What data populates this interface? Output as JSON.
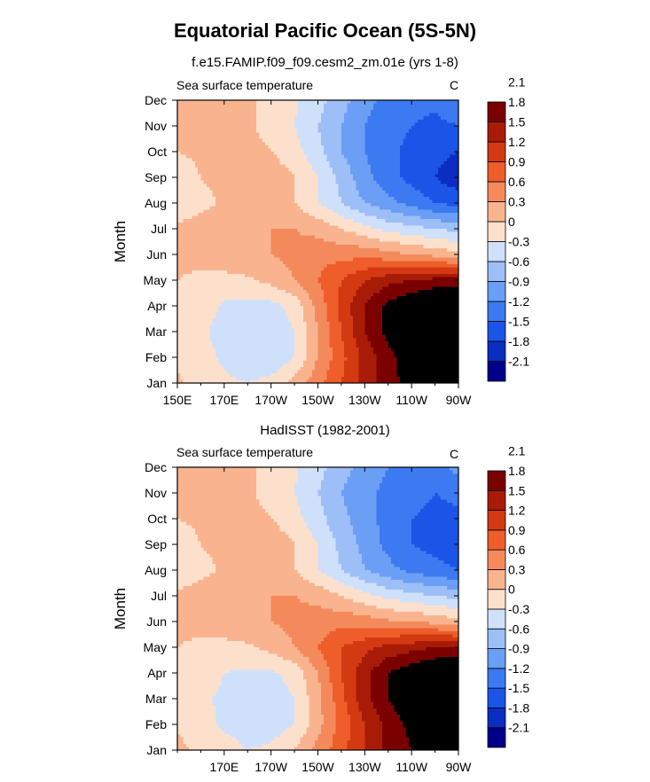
{
  "main_title": "Equatorial Pacific Ocean (5S-5N)",
  "panels": [
    {
      "title": "f.e15.FAMIP.f09_f09.cesm2_zm.01e (yrs 1-8)",
      "label": "Sea surface temperature",
      "units": "C"
    },
    {
      "title": "HadISST (1982-2001)",
      "label": "Sea surface temperature",
      "units": "C"
    }
  ],
  "colors": {
    "levels": [
      "#00008b",
      "#0b2dc2",
      "#1b55e8",
      "#3c7af2",
      "#6b9ef5",
      "#9dbff7",
      "#cfe0fb",
      "#fde0cc",
      "#f9b48f",
      "#f48a5b",
      "#ef5d2a",
      "#d33a12",
      "#a81c07",
      "#7b0000"
    ]
  },
  "chart_data": [
    {
      "type": "heatmap",
      "title": "f.e15.FAMIP.f09_f09.cesm2_zm.01e (yrs 1-8)",
      "subtitle": "Sea surface temperature",
      "units": "C",
      "xlabel": "",
      "ylabel": "Month",
      "x_range": [
        150,
        270
      ],
      "x_ticks": [
        150,
        170,
        190,
        210,
        230,
        250,
        270
      ],
      "x_tick_labels": [
        "150E",
        "170E",
        "170W",
        "150W",
        "130W",
        "110W",
        "90W"
      ],
      "y_ticks": [
        1,
        2,
        3,
        4,
        5,
        6,
        7,
        8,
        9,
        10,
        11,
        12
      ],
      "y_tick_labels": [
        "Jan",
        "Feb",
        "Mar",
        "Apr",
        "May",
        "Jun",
        "Jul",
        "Aug",
        "Sep",
        "Oct",
        "Nov",
        "Dec"
      ],
      "colorbar_levels": [
        -2.1,
        -1.8,
        -1.5,
        -1.2,
        -0.9,
        -0.6,
        -0.3,
        0,
        0.3,
        0.6,
        0.9,
        1.2,
        1.5,
        1.8,
        2.1
      ],
      "colorbar_labels": [
        "-2.1",
        "-1.8",
        "-1.5",
        "-1.2",
        "-0.9",
        "-0.6",
        "-0.3",
        "0",
        "0.3",
        "0.6",
        "0.9",
        "1.2",
        "1.5",
        "1.8",
        "2.1"
      ],
      "legend_position": "right",
      "x": [
        150,
        160,
        170,
        180,
        190,
        200,
        210,
        220,
        230,
        240,
        250,
        260,
        270
      ],
      "y": [
        1,
        2,
        3,
        4,
        5,
        6,
        7,
        8,
        9,
        10,
        11,
        12
      ],
      "z": [
        [
          0.05,
          -0.15,
          -0.25,
          -0.3,
          -0.2,
          0.1,
          0.5,
          0.9,
          1.3,
          1.7,
          1.9,
          2.0,
          2.0
        ],
        [
          -0.05,
          -0.2,
          -0.35,
          -0.45,
          -0.55,
          -0.3,
          0.3,
          0.8,
          1.3,
          1.7,
          2.0,
          2.2,
          2.3
        ],
        [
          -0.1,
          -0.25,
          -0.4,
          -0.5,
          -0.5,
          -0.3,
          0.3,
          0.9,
          1.5,
          1.9,
          2.2,
          2.4,
          2.4
        ],
        [
          -0.05,
          -0.15,
          -0.35,
          -0.4,
          -0.4,
          -0.2,
          0.4,
          1.0,
          1.5,
          1.9,
          2.1,
          2.3,
          2.3
        ],
        [
          0.0,
          -0.1,
          -0.1,
          -0.05,
          0.1,
          0.3,
          0.6,
          0.9,
          1.2,
          1.4,
          1.5,
          1.6,
          1.6
        ],
        [
          0.1,
          0.15,
          0.2,
          0.25,
          0.3,
          0.4,
          0.5,
          0.5,
          0.5,
          0.4,
          0.3,
          0.2,
          0.1
        ],
        [
          0.1,
          0.15,
          0.2,
          0.25,
          0.3,
          0.3,
          0.2,
          0.0,
          -0.2,
          -0.4,
          -0.5,
          -0.6,
          -0.7
        ],
        [
          -0.3,
          -0.1,
          0.05,
          0.1,
          0.1,
          0.0,
          -0.3,
          -0.6,
          -0.9,
          -1.1,
          -1.3,
          -1.5,
          -1.6
        ],
        [
          -0.15,
          0.0,
          0.1,
          0.3,
          0.2,
          0.0,
          -0.3,
          -0.7,
          -1.1,
          -1.4,
          -1.6,
          -1.8,
          -2.0
        ],
        [
          0.0,
          0.05,
          0.1,
          0.1,
          0.0,
          -0.2,
          -0.5,
          -0.9,
          -1.2,
          -1.4,
          -1.6,
          -1.7,
          -1.8
        ],
        [
          0.05,
          0.1,
          0.1,
          0.05,
          -0.1,
          -0.3,
          -0.6,
          -0.9,
          -1.2,
          -1.4,
          -1.5,
          -1.6,
          -1.5
        ],
        [
          0.05,
          0.1,
          0.1,
          0.05,
          -0.1,
          -0.25,
          -0.5,
          -0.8,
          -1.1,
          -1.3,
          -1.4,
          -1.4,
          -1.2
        ]
      ]
    },
    {
      "type": "heatmap",
      "title": "HadISST (1982-2001)",
      "subtitle": "Sea surface temperature",
      "units": "C",
      "xlabel": "",
      "ylabel": "Month",
      "x_range": [
        150,
        270
      ],
      "x_ticks": [
        170,
        190,
        210,
        230,
        250,
        270
      ],
      "x_tick_labels": [
        "170E",
        "170W",
        "150W",
        "130W",
        "110W",
        "90W"
      ],
      "y_ticks": [
        1,
        2,
        3,
        4,
        5,
        6,
        7,
        8,
        9,
        10,
        11,
        12
      ],
      "y_tick_labels": [
        "Jan",
        "Feb",
        "Mar",
        "Apr",
        "May",
        "Jun",
        "Jul",
        "Aug",
        "Sep",
        "Oct",
        "Nov",
        "Dec"
      ],
      "colorbar_levels": [
        -2.1,
        -1.8,
        -1.5,
        -1.2,
        -0.9,
        -0.6,
        -0.3,
        0,
        0.3,
        0.6,
        0.9,
        1.2,
        1.5,
        1.8,
        2.1
      ],
      "colorbar_labels": [
        "-2.1",
        "-1.8",
        "-1.5",
        "-1.2",
        "-0.9",
        "-0.6",
        "-0.3",
        "0",
        "0.3",
        "0.6",
        "0.9",
        "1.2",
        "1.5",
        "1.8",
        "2.1"
      ],
      "legend_position": "right",
      "x": [
        150,
        160,
        170,
        180,
        190,
        200,
        210,
        220,
        230,
        240,
        250,
        260,
        270
      ],
      "y": [
        1,
        2,
        3,
        4,
        5,
        6,
        7,
        8,
        9,
        10,
        11,
        12
      ],
      "z": [
        [
          0.1,
          -0.1,
          -0.2,
          -0.3,
          -0.25,
          0.0,
          0.4,
          0.8,
          1.2,
          1.6,
          1.8,
          1.9,
          1.9
        ],
        [
          -0.05,
          -0.2,
          -0.35,
          -0.4,
          -0.45,
          -0.3,
          0.2,
          0.7,
          1.2,
          1.6,
          1.9,
          2.0,
          2.1
        ],
        [
          -0.1,
          -0.25,
          -0.35,
          -0.45,
          -0.45,
          -0.3,
          0.2,
          0.8,
          1.4,
          1.8,
          2.1,
          2.3,
          2.3
        ],
        [
          -0.05,
          -0.15,
          -0.3,
          -0.35,
          -0.35,
          -0.2,
          0.3,
          0.9,
          1.4,
          1.8,
          2.0,
          2.2,
          2.2
        ],
        [
          0.0,
          -0.1,
          -0.1,
          -0.05,
          0.1,
          0.3,
          0.6,
          0.9,
          1.1,
          1.3,
          1.4,
          1.5,
          1.5
        ],
        [
          0.1,
          0.15,
          0.2,
          0.25,
          0.3,
          0.4,
          0.45,
          0.5,
          0.45,
          0.35,
          0.3,
          0.2,
          0.1
        ],
        [
          0.1,
          0.15,
          0.2,
          0.25,
          0.3,
          0.3,
          0.2,
          0.0,
          -0.2,
          -0.4,
          -0.5,
          -0.6,
          -0.7
        ],
        [
          -0.3,
          -0.1,
          0.05,
          0.1,
          0.1,
          0.0,
          -0.3,
          -0.6,
          -0.9,
          -1.1,
          -1.3,
          -1.4,
          -1.5
        ],
        [
          -0.15,
          0.0,
          0.1,
          0.3,
          0.2,
          0.0,
          -0.3,
          -0.7,
          -1.0,
          -1.3,
          -1.5,
          -1.6,
          -1.7
        ],
        [
          0.0,
          0.05,
          0.1,
          0.1,
          0.0,
          -0.2,
          -0.5,
          -0.8,
          -1.1,
          -1.3,
          -1.5,
          -1.6,
          -1.6
        ],
        [
          0.05,
          0.1,
          0.1,
          0.05,
          -0.1,
          -0.3,
          -0.6,
          -0.9,
          -1.1,
          -1.3,
          -1.4,
          -1.5,
          -1.4
        ],
        [
          0.05,
          0.1,
          0.1,
          0.05,
          -0.1,
          -0.25,
          -0.5,
          -0.8,
          -1.0,
          -1.2,
          -1.3,
          -1.3,
          -1.1
        ]
      ]
    }
  ]
}
